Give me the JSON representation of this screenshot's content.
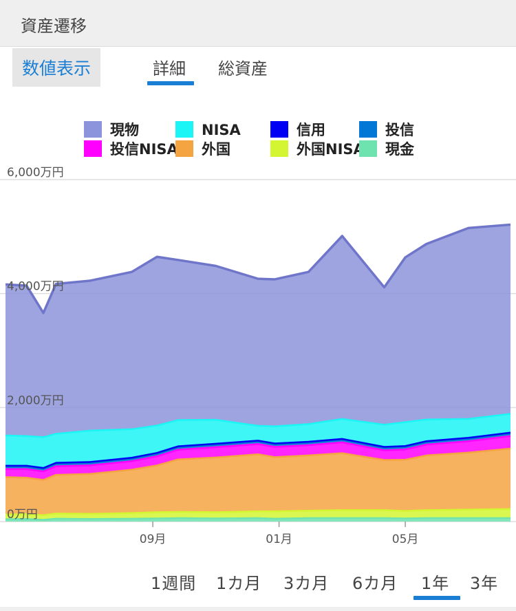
{
  "section": {
    "title": "資産遷移"
  },
  "view_button": {
    "label": "数値表示"
  },
  "tabs": [
    {
      "label": "詳細",
      "active": true
    },
    {
      "label": "総資産",
      "active": false
    }
  ],
  "periods": [
    {
      "label": "1週間",
      "active": false
    },
    {
      "label": "1カ月",
      "active": false
    },
    {
      "label": "3カ月",
      "active": false
    },
    {
      "label": "6カ月",
      "active": false
    },
    {
      "label": "1年",
      "active": true
    },
    {
      "label": "3年",
      "active": false
    }
  ],
  "colors": {
    "accent": "#1a7fd4"
  },
  "chart_data": {
    "type": "area",
    "stacked": true,
    "y_unit": "万円",
    "ylim": [
      0,
      6000
    ],
    "y_ticks": [
      {
        "value": 0,
        "label": "0万円"
      },
      {
        "value": 2000,
        "label": "2,000万円"
      },
      {
        "value": 4000,
        "label": "4,000万円"
      },
      {
        "value": 6000,
        "label": "6,000万円"
      }
    ],
    "x_ticks": [
      {
        "x": 3.5,
        "label": "09月"
      },
      {
        "x": 6.5,
        "label": "01月"
      },
      {
        "x": 9.5,
        "label": "05月"
      }
    ],
    "x_range": [
      0,
      12
    ],
    "grid": true,
    "legend_position": "top",
    "x": [
      0,
      0.5,
      0.9,
      1.2,
      2.0,
      3.0,
      3.6,
      4.1,
      5.0,
      6.0,
      6.4,
      7.2,
      8.0,
      9.0,
      9.5,
      10.0,
      11.0,
      12.0
    ],
    "series": [
      {
        "name": "現金",
        "color": "#6ee3b0",
        "values": [
          40,
          45,
          30,
          50,
          45,
          50,
          55,
          60,
          55,
          60,
          50,
          60,
          60,
          60,
          55,
          60,
          60,
          60
        ]
      },
      {
        "name": "外国NISA",
        "color": "#d4f531",
        "values": [
          80,
          85,
          80,
          90,
          90,
          100,
          110,
          110,
          110,
          120,
          130,
          130,
          140,
          140,
          130,
          140,
          150,
          160
        ]
      },
      {
        "name": "外国",
        "color": "#f5a442",
        "values": [
          660,
          640,
          620,
          680,
          700,
          760,
          820,
          920,
          960,
          1000,
          950,
          970,
          1000,
          880,
          900,
          960,
          1000,
          1060
        ]
      },
      {
        "name": "投信NISA",
        "color": "#ff00ff",
        "values": [
          140,
          150,
          150,
          150,
          150,
          150,
          160,
          170,
          180,
          180,
          180,
          180,
          190,
          170,
          180,
          190,
          200,
          220
        ]
      },
      {
        "name": "投信",
        "color": "#0277d6",
        "values": [
          40,
          40,
          40,
          40,
          40,
          40,
          40,
          40,
          40,
          40,
          40,
          40,
          40,
          40,
          40,
          40,
          40,
          40
        ]
      },
      {
        "name": "信用",
        "color": "#0000f5",
        "values": [
          20,
          20,
          20,
          20,
          20,
          20,
          20,
          20,
          20,
          20,
          20,
          20,
          20,
          20,
          20,
          20,
          20,
          20
        ]
      },
      {
        "name": "NISA",
        "color": "#1cf5f5",
        "values": [
          530,
          520,
          540,
          510,
          550,
          500,
          480,
          460,
          420,
          260,
          300,
          310,
          350,
          390,
          420,
          380,
          330,
          330
        ]
      },
      {
        "name": "現物",
        "color": "#8c94db",
        "line_color": "#6f76c9",
        "values": [
          2650,
          2640,
          2180,
          2630,
          2630,
          2760,
          2960,
          2810,
          2700,
          2580,
          2580,
          2670,
          3210,
          2410,
          2890,
          3080,
          3350,
          3320
        ]
      }
    ],
    "legend_order": [
      "現物",
      "NISA",
      "信用",
      "投信",
      "投信NISA",
      "外国",
      "外国NISA",
      "現金"
    ]
  }
}
